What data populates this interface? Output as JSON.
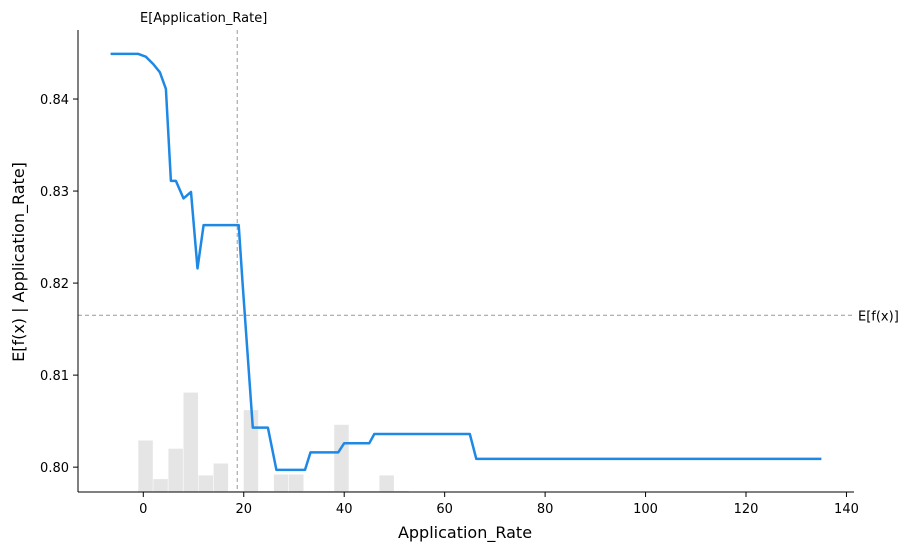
{
  "chart_data": {
    "type": "line",
    "xlabel": "Application_Rate",
    "ylabel": "E[f(x) | Application_Rate]",
    "xlim": [
      -13,
      141.5
    ],
    "ylim": [
      0.7973,
      0.8475
    ],
    "xticks": [
      0,
      20,
      40,
      60,
      80,
      100,
      120,
      140
    ],
    "yticks": [
      0.8,
      0.81,
      0.82,
      0.83,
      0.84
    ],
    "ytick_labels": [
      "0.80",
      "0.81",
      "0.82",
      "0.83",
      "0.84"
    ],
    "grid": false,
    "colors": {
      "line": "#1e88e5",
      "histogram": "#e5e5e5",
      "reference": "#999999"
    },
    "reference_lines": {
      "vertical": {
        "x": 18.7,
        "label": "E[Application_Rate]"
      },
      "horizontal": {
        "y": 0.8165,
        "label": "E[f(x)]"
      }
    },
    "series": [
      {
        "x": [
          -6.5,
          -3.5,
          -1,
          0.5,
          2,
          3.3,
          4.5,
          5.5,
          6.5,
          8,
          9.5,
          10.8,
          12,
          15,
          18.5,
          19,
          19.8,
          21.8,
          24.8,
          26.5,
          32.2,
          33.3,
          38.8,
          40,
          45,
          46,
          65,
          66.3,
          135
        ],
        "y": [
          0.8449,
          0.8449,
          0.8449,
          0.8446,
          0.8438,
          0.8429,
          0.8411,
          0.8311,
          0.8311,
          0.8292,
          0.8299,
          0.8216,
          0.8263,
          0.8263,
          0.8263,
          0.8263,
          0.8198,
          0.8043,
          0.8043,
          0.7997,
          0.7997,
          0.8016,
          0.8016,
          0.8026,
          0.8026,
          0.8036,
          0.8036,
          0.8009,
          0.8009
        ]
      }
    ],
    "histogram": {
      "bin_edges": [
        -1,
        2,
        5,
        8,
        11,
        14,
        17,
        20,
        23,
        26,
        29,
        32,
        35,
        38,
        41,
        44,
        47,
        50,
        53
      ],
      "heights": [
        0.8029,
        0.7987,
        0.802,
        0.8081,
        0.7991,
        0.8004,
        0.7974,
        0.8062,
        0.7974,
        0.7992,
        0.7992,
        0.7974,
        0.7974,
        0.8046,
        0.7974,
        0.7974,
        0.7991,
        0.7974
      ]
    }
  }
}
